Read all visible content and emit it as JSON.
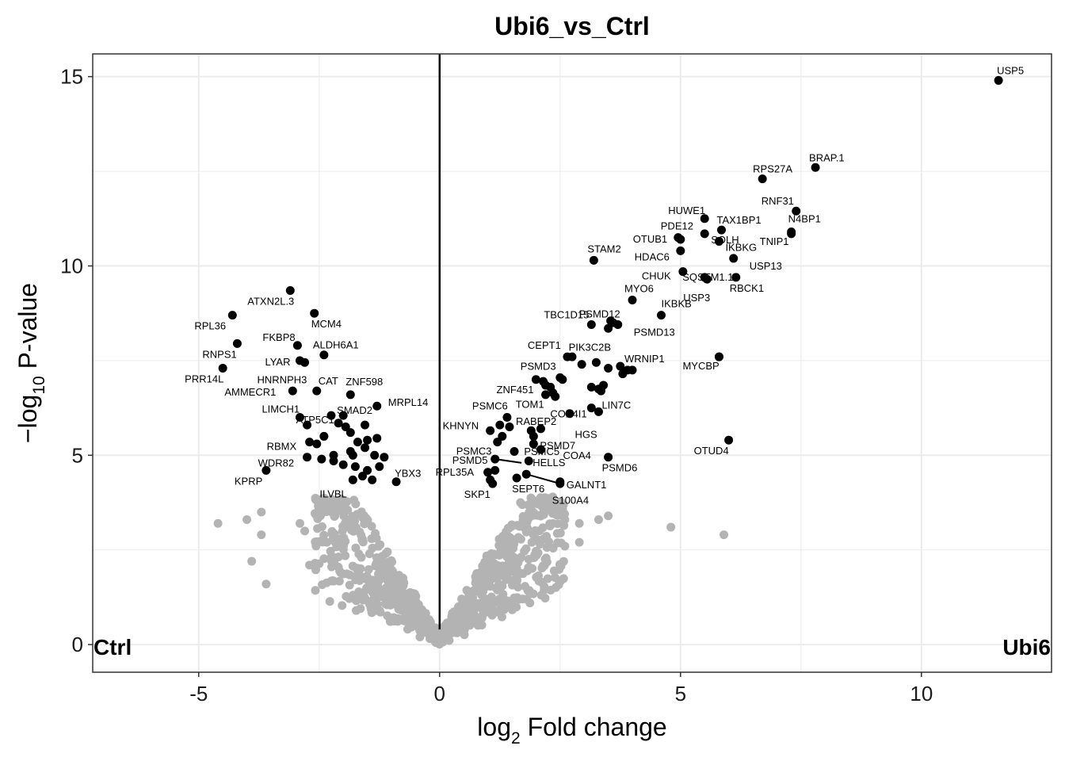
{
  "chart_data": {
    "type": "scatter",
    "title": "Ubi6_vs_Ctrl",
    "xlabel_main": "log",
    "xlabel_sub": "2",
    "xlabel_rest": " Fold change",
    "ylabel_main": "−log",
    "ylabel_sub": "10",
    "ylabel_rest": " P-value",
    "xlim": [
      -7.2,
      12.7
    ],
    "ylim": [
      -0.73,
      15.6
    ],
    "x_ticks": [
      -5,
      0,
      5,
      10
    ],
    "x_tick_labels": [
      "-5",
      "0",
      "5",
      "10"
    ],
    "y_ticks": [
      0,
      5,
      10,
      15
    ],
    "y_tick_labels": [
      "0",
      "5",
      "10",
      "15"
    ],
    "grid": true,
    "vline": 0,
    "corner_left": "Ctrl",
    "corner_right": "Ubi6",
    "colors": {
      "significant": "#000000",
      "nonsignificant": "#b3b3b3",
      "grid": "#ebebeb",
      "panel_border": "#333333"
    },
    "labeled_points": [
      {
        "gene": "USP5",
        "x": 11.6,
        "y": 14.9
      },
      {
        "gene": "BRAP.1",
        "x": 7.8,
        "y": 12.6
      },
      {
        "gene": "RPS27A",
        "x": 6.7,
        "y": 12.3
      },
      {
        "gene": "RNF31",
        "x": 7.4,
        "y": 11.45
      },
      {
        "gene": "N4BP1",
        "x": 7.3,
        "y": 10.9
      },
      {
        "gene": "TNIP1",
        "x": 7.3,
        "y": 10.85
      },
      {
        "gene": "HUWE1",
        "x": 5.5,
        "y": 11.25
      },
      {
        "gene": "TAX1BP1",
        "x": 5.85,
        "y": 10.95
      },
      {
        "gene": "PDE12",
        "x": 4.95,
        "y": 10.75
      },
      {
        "gene": "OTUB1",
        "x": 5.0,
        "y": 10.7
      },
      {
        "gene": "SOLH",
        "x": 5.5,
        "y": 10.85
      },
      {
        "gene": "IKBKG",
        "x": 5.8,
        "y": 10.65
      },
      {
        "gene": "STAM2",
        "x": 3.2,
        "y": 10.15
      },
      {
        "gene": "HDAC6",
        "x": 5.0,
        "y": 10.4
      },
      {
        "gene": "USP13",
        "x": 6.1,
        "y": 10.2
      },
      {
        "gene": "CHUK",
        "x": 5.05,
        "y": 9.85
      },
      {
        "gene": "SQSTM1.1",
        "x": 5.5,
        "y": 9.7
      },
      {
        "gene": "USP3",
        "x": 5.55,
        "y": 9.65
      },
      {
        "gene": "RBCK1",
        "x": 6.15,
        "y": 9.7
      },
      {
        "gene": "MYO6",
        "x": 4.0,
        "y": 9.1
      },
      {
        "gene": "IKBKB",
        "x": 4.6,
        "y": 8.7
      },
      {
        "gene": "PSMD12",
        "x": 3.55,
        "y": 8.55
      },
      {
        "gene": "TBC1D15",
        "x": 3.15,
        "y": 8.45
      },
      {
        "gene": "PSMD13",
        "x": 3.7,
        "y": 8.45
      },
      {
        "gene": "PIK3C2B",
        "x": 3.5,
        "y": 8.35
      },
      {
        "gene": "CEPT1",
        "x": 2.65,
        "y": 7.6
      },
      {
        "gene": "WRNIP1",
        "x": 4.0,
        "y": 7.25
      },
      {
        "gene": "MYCBP",
        "x": 5.8,
        "y": 7.6
      },
      {
        "gene": "PSMD3",
        "x": 2.5,
        "y": 7.05
      },
      {
        "gene": "ZNF451",
        "x": 2.2,
        "y": 6.85
      },
      {
        "gene": "TOM1",
        "x": 2.4,
        "y": 6.55
      },
      {
        "gene": "COX4I1",
        "x": 3.15,
        "y": 6.25
      },
      {
        "gene": "LIN7C",
        "x": 3.3,
        "y": 6.15
      },
      {
        "gene": "PSMC6",
        "x": 1.4,
        "y": 6.0
      },
      {
        "gene": "RABEP2",
        "x": 2.7,
        "y": 6.1
      },
      {
        "gene": "HGS",
        "x": 3.3,
        "y": 6.75
      },
      {
        "gene": "KHNYN",
        "x": 1.05,
        "y": 5.65
      },
      {
        "gene": "PSMD7",
        "x": 1.95,
        "y": 5.5
      },
      {
        "gene": "PSMC3",
        "x": 1.2,
        "y": 5.35
      },
      {
        "gene": "PSMC5",
        "x": 1.95,
        "y": 5.3
      },
      {
        "gene": "PSMD5",
        "x": 1.15,
        "y": 4.9
      },
      {
        "gene": "COA4",
        "x": 2.1,
        "y": 5.15
      },
      {
        "gene": "PSMD6",
        "x": 3.5,
        "y": 4.95
      },
      {
        "gene": "OTUD4",
        "x": 6.0,
        "y": 5.4
      },
      {
        "gene": "HELLS",
        "x": 1.8,
        "y": 4.5
      },
      {
        "gene": "RPL35A",
        "x": 1.0,
        "y": 4.55
      },
      {
        "gene": "SEPT6",
        "x": 1.6,
        "y": 4.4
      },
      {
        "gene": "GALNT1",
        "x": 2.5,
        "y": 4.25
      },
      {
        "gene": "SKP1",
        "x": 1.1,
        "y": 4.25
      },
      {
        "gene": "S100A4",
        "x": 2.5,
        "y": 4.3
      },
      {
        "gene": "ATXN2L.3",
        "x": -3.1,
        "y": 9.35
      },
      {
        "gene": "RPL36",
        "x": -4.3,
        "y": 8.7
      },
      {
        "gene": "MCM4",
        "x": -2.6,
        "y": 8.75
      },
      {
        "gene": "FKBP8",
        "x": -2.95,
        "y": 7.9
      },
      {
        "gene": "RNPS1",
        "x": -4.2,
        "y": 7.95
      },
      {
        "gene": "ALDH6A1",
        "x": -2.4,
        "y": 7.65
      },
      {
        "gene": "LYAR",
        "x": -2.9,
        "y": 7.5
      },
      {
        "gene": "HNRNPH3",
        "x": -2.8,
        "y": 7.45
      },
      {
        "gene": "PRR14L",
        "x": -4.5,
        "y": 7.3
      },
      {
        "gene": "CAT",
        "x": -2.55,
        "y": 6.7
      },
      {
        "gene": "AMMECR1",
        "x": -3.05,
        "y": 6.7
      },
      {
        "gene": "ZNF598",
        "x": -1.85,
        "y": 6.6
      },
      {
        "gene": "MRPL14",
        "x": -1.3,
        "y": 6.3
      },
      {
        "gene": "LIMCH1",
        "x": -2.9,
        "y": 6.0
      },
      {
        "gene": "SMAD2",
        "x": -2.0,
        "y": 6.05
      },
      {
        "gene": "ATP5C1",
        "x": -2.75,
        "y": 5.8
      },
      {
        "gene": "RBMX",
        "x": -2.7,
        "y": 5.35
      },
      {
        "gene": "WDR82",
        "x": -2.75,
        "y": 4.95
      },
      {
        "gene": "KPRP",
        "x": -3.6,
        "y": 4.6
      },
      {
        "gene": "YBX3",
        "x": -0.9,
        "y": 4.3
      },
      {
        "gene": "ILVBL",
        "x": -1.8,
        "y": 4.35
      }
    ],
    "unlabeled_significant": [
      {
        "x": -2.25,
        "y": 6.05
      },
      {
        "x": -2.1,
        "y": 5.85
      },
      {
        "x": -1.95,
        "y": 5.75
      },
      {
        "x": -2.4,
        "y": 5.5
      },
      {
        "x": -1.85,
        "y": 5.6
      },
      {
        "x": -1.55,
        "y": 5.8
      },
      {
        "x": -1.7,
        "y": 5.35
      },
      {
        "x": -1.5,
        "y": 5.4
      },
      {
        "x": -1.3,
        "y": 5.45
      },
      {
        "x": -2.55,
        "y": 5.3
      },
      {
        "x": -2.2,
        "y": 5.0
      },
      {
        "x": -1.85,
        "y": 5.1
      },
      {
        "x": -1.55,
        "y": 5.2
      },
      {
        "x": -1.35,
        "y": 5.0
      },
      {
        "x": -1.15,
        "y": 4.95
      },
      {
        "x": -2.45,
        "y": 4.9
      },
      {
        "x": -2.0,
        "y": 4.75
      },
      {
        "x": -1.75,
        "y": 4.7
      },
      {
        "x": -1.5,
        "y": 4.6
      },
      {
        "x": -1.6,
        "y": 4.45
      },
      {
        "x": -1.4,
        "y": 4.35
      },
      {
        "x": -1.25,
        "y": 4.7
      },
      {
        "x": -1.8,
        "y": 5.0
      },
      {
        "x": -2.2,
        "y": 4.85
      },
      {
        "x": 1.25,
        "y": 5.8
      },
      {
        "x": 1.45,
        "y": 5.75
      },
      {
        "x": 1.3,
        "y": 5.5
      },
      {
        "x": 2.1,
        "y": 5.7
      },
      {
        "x": 1.9,
        "y": 5.65
      },
      {
        "x": 1.55,
        "y": 5.1
      },
      {
        "x": 1.85,
        "y": 4.85
      },
      {
        "x": 1.15,
        "y": 4.6
      },
      {
        "x": 1.05,
        "y": 4.35
      },
      {
        "x": 2.0,
        "y": 7.0
      },
      {
        "x": 2.15,
        "y": 6.95
      },
      {
        "x": 2.3,
        "y": 6.8
      },
      {
        "x": 2.55,
        "y": 7.0
      },
      {
        "x": 2.75,
        "y": 7.6
      },
      {
        "x": 2.95,
        "y": 7.4
      },
      {
        "x": 3.25,
        "y": 7.45
      },
      {
        "x": 3.4,
        "y": 6.85
      },
      {
        "x": 3.5,
        "y": 7.3
      },
      {
        "x": 3.75,
        "y": 7.35
      },
      {
        "x": 3.8,
        "y": 7.15
      },
      {
        "x": 3.9,
        "y": 7.25
      },
      {
        "x": 3.15,
        "y": 6.8
      },
      {
        "x": 2.35,
        "y": 6.65
      },
      {
        "x": 2.2,
        "y": 6.6
      },
      {
        "x": 3.35,
        "y": 6.7
      },
      {
        "x": 3.6,
        "y": 8.5
      },
      {
        "x": 5.8,
        "y": 7.6
      }
    ],
    "connector_lines": [
      {
        "from": [
          1.15,
          4.9
        ],
        "to": [
          1.7,
          4.8
        ]
      },
      {
        "from": [
          1.8,
          4.5
        ],
        "to": [
          2.5,
          4.25
        ]
      }
    ],
    "label_offsets": "text labels repelled from points as drawn"
  }
}
